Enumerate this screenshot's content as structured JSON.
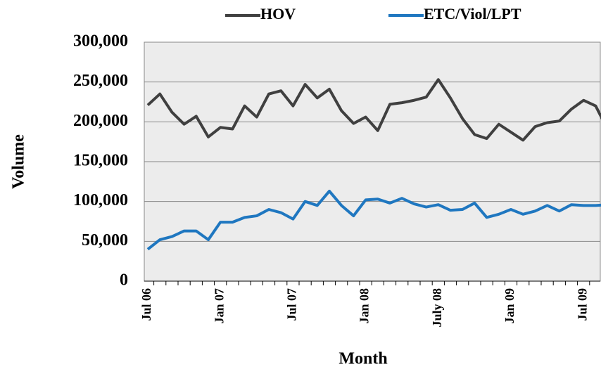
{
  "chart_data": {
    "type": "line",
    "xlabel": "Month",
    "ylabel": "Volume",
    "categories": [
      "Jul 06",
      null,
      null,
      null,
      null,
      null,
      "Jan 07",
      null,
      null,
      null,
      null,
      null,
      "Jul 07",
      null,
      null,
      null,
      null,
      null,
      "Jan 08",
      null,
      null,
      null,
      null,
      null,
      "July 08",
      null,
      null,
      null,
      null,
      null,
      "Jan 09",
      null,
      null,
      null,
      null,
      null,
      "Jul 09",
      null,
      null
    ],
    "series": [
      {
        "name": "HOV",
        "color": "#404040",
        "values": [
          221000,
          235000,
          212000,
          197000,
          207000,
          181000,
          193000,
          191000,
          220000,
          206000,
          235000,
          239000,
          220000,
          247000,
          230000,
          241000,
          214000,
          198000,
          206000,
          189000,
          222000,
          224000,
          227000,
          231000,
          253000,
          230000,
          204000,
          184000,
          179000,
          197000,
          187000,
          177000,
          194000,
          199000,
          201000,
          216000,
          227000,
          220000,
          190000
        ]
      },
      {
        "name": "ETC/Viol/LPT",
        "color": "#1f77c0",
        "values": [
          40000,
          52000,
          56000,
          63000,
          63000,
          52000,
          74000,
          74000,
          80000,
          82000,
          90000,
          86000,
          78000,
          100000,
          95000,
          113000,
          95000,
          82000,
          102000,
          103000,
          98000,
          104000,
          97000,
          93000,
          96000,
          89000,
          90000,
          98000,
          80000,
          84000,
          90000,
          84000,
          88000,
          95000,
          88000,
          96000,
          95000,
          95000,
          96000
        ]
      }
    ],
    "ylim": [
      0,
      300000
    ],
    "yticks": [
      0,
      {
        "value": 50000,
        "label": "50,000"
      },
      {
        "value": 100000,
        "label": "100,000"
      },
      {
        "value": 150000,
        "label": "150,000"
      },
      {
        "value": 200000,
        "label": "200,000"
      },
      {
        "value": 250000,
        "label": "250,000"
      },
      {
        "value": 300000,
        "label": "300,000"
      }
    ],
    "grid": true,
    "legend": "top"
  }
}
